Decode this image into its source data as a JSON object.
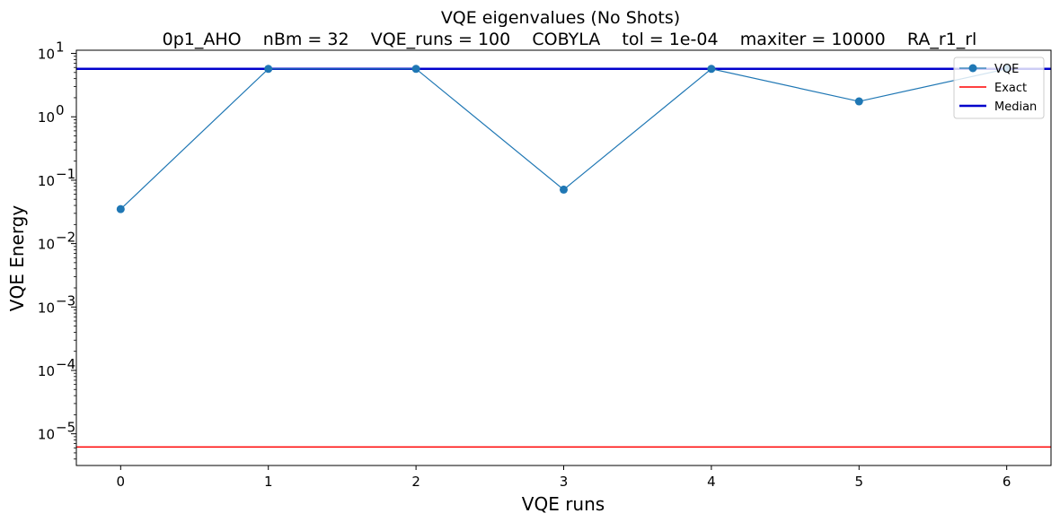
{
  "chart_data": {
    "type": "line",
    "title": "VQE eigenvalues (No Shots)",
    "subtitle": "0p1_AHO    nBm = 32    VQE_runs = 100    COBYLA    tol = 1e-04    maxiter = 10000    RA_r1_rl",
    "xlabel": "VQE runs",
    "ylabel": "VQE Energy",
    "yscale": "log",
    "xlim": [
      -0.3,
      6.3
    ],
    "ylim_exponent": [
      -5.5,
      1.05
    ],
    "x_ticks": [
      0,
      1,
      2,
      3,
      4,
      5,
      6
    ],
    "y_tick_exponents": [
      -5,
      -4,
      -3,
      -2,
      -1,
      0,
      1
    ],
    "x": [
      0,
      1,
      2,
      3,
      4,
      5,
      6
    ],
    "series": [
      {
        "name": "VQE",
        "values": [
          0.035,
          5.7,
          5.7,
          0.071,
          5.7,
          1.75,
          5.7
        ],
        "color": "#1f77b4"
      }
    ],
    "hlines": [
      {
        "name": "Exact",
        "value": 6.2e-06,
        "color": "#ff0000"
      },
      {
        "name": "Median",
        "value": 5.7,
        "color": "#0000cc"
      }
    ],
    "legend_position": "top-right",
    "grid": false
  }
}
